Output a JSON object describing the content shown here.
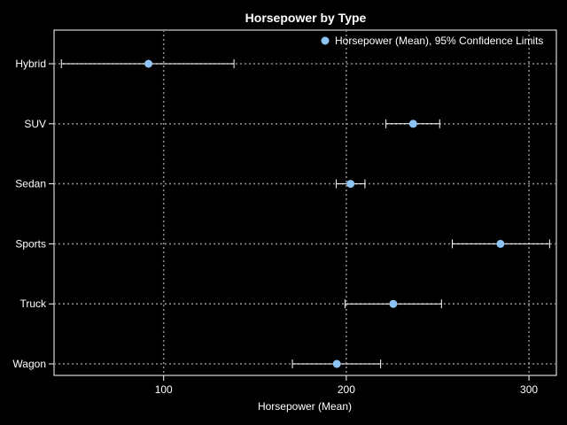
{
  "chart_data": {
    "type": "scatter",
    "title": "Horsepower by Type",
    "xlabel": "Horsepower (Mean)",
    "ylabel": "",
    "categories": [
      "Hybrid",
      "SUV",
      "Sedan",
      "Sports",
      "Truck",
      "Wagon"
    ],
    "series": [
      {
        "name": "Horsepower (Mean), 95% Confidence Limits",
        "mean": [
          91.7,
          236.6,
          202.3,
          284.4,
          225.7,
          194.8
        ],
        "lower": [
          44,
          221.7,
          194.5,
          258,
          199.3,
          170.5
        ],
        "upper": [
          138.5,
          251.1,
          210.2,
          311.3,
          252.1,
          218.8
        ]
      }
    ],
    "xlim": [
      40,
      315
    ],
    "xticks": [
      100,
      200,
      300
    ],
    "grid": true,
    "legend_position": "top-right"
  },
  "colors": {
    "background": "#000000",
    "marker": "#8cc4f4",
    "errorbar": "#ffffff",
    "grid": "#8a8a8a",
    "text": "#ffffff"
  }
}
